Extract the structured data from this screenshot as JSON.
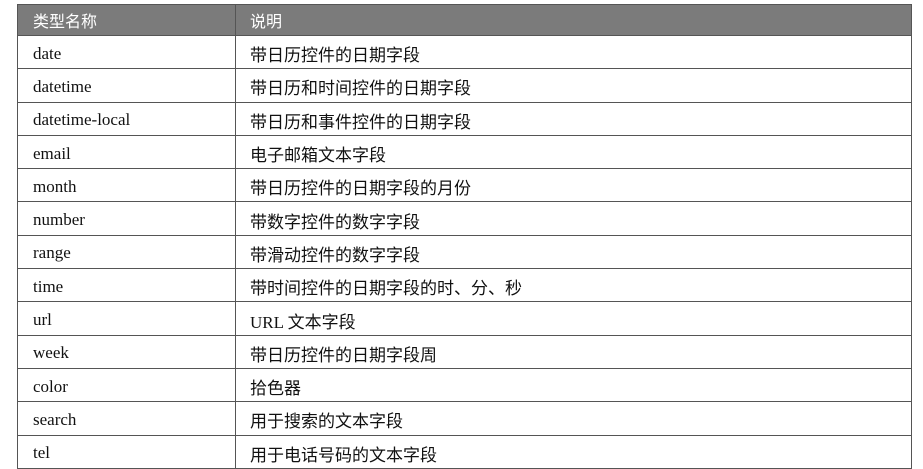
{
  "header": {
    "col1": "类型名称",
    "col2": "说明"
  },
  "header_color": "#7b7b7b",
  "rows": [
    {
      "type": "date",
      "desc": "带日历控件的日期字段"
    },
    {
      "type": "datetime",
      "desc": "带日历和时间控件的日期字段"
    },
    {
      "type": "datetime-local",
      "desc": "带日历和事件控件的日期字段"
    },
    {
      "type": "email",
      "desc": "电子邮箱文本字段"
    },
    {
      "type": "month",
      "desc": "带日历控件的日期字段的月份"
    },
    {
      "type": "number",
      "desc": "带数字控件的数字字段"
    },
    {
      "type": "range",
      "desc": "带滑动控件的数字字段"
    },
    {
      "type": "time",
      "desc": "带时间控件的日期字段的时、分、秒"
    },
    {
      "type": "url",
      "desc": "URL 文本字段"
    },
    {
      "type": "week",
      "desc": "带日历控件的日期字段周"
    },
    {
      "type": "color",
      "desc": "拾色器"
    },
    {
      "type": "search",
      "desc": "用于搜索的文本字段"
    },
    {
      "type": "tel",
      "desc": "用于电话号码的文本字段"
    }
  ]
}
